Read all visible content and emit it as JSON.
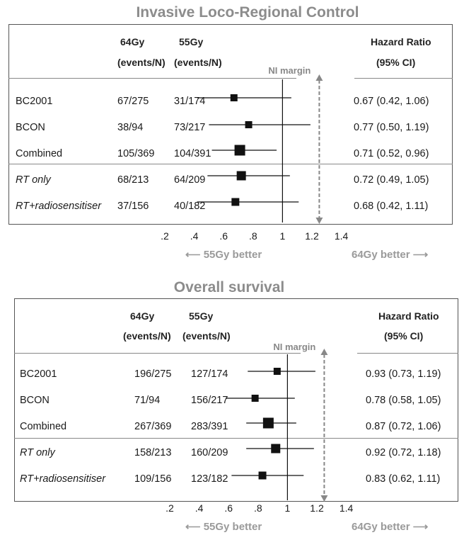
{
  "chart_data": [
    {
      "type": "forest",
      "title": "Invasive Loco-Regional Control",
      "headers": {
        "col64_line1": "64Gy",
        "col64_line2": "(events/N)",
        "col55_line1": "55Gy",
        "col55_line2": "(events/N)",
        "hr_line1": "Hazard Ratio",
        "hr_line2": "(95% CI)"
      },
      "ni_margin_label": "NI margin",
      "ni_margin_value": 1.25,
      "xticks": [
        0.2,
        0.4,
        0.6,
        0.8,
        1,
        1.2,
        1.4
      ],
      "xtick_labels": [
        ".2",
        ".4",
        ".6",
        ".8",
        "1",
        "1.2",
        "1.4"
      ],
      "xlim": [
        0.1,
        1.5
      ],
      "left_better": "55Gy better",
      "right_better": "64Gy better",
      "rows": [
        {
          "label": "BC2001",
          "italic": false,
          "e64": "67/275",
          "e55": "31/174",
          "hr": 0.67,
          "lo": 0.42,
          "hi": 1.06,
          "ci_text": "0.67 (0.42, 1.06)"
        },
        {
          "label": "BCON",
          "italic": false,
          "e64": "38/94",
          "e55": "73/217",
          "hr": 0.77,
          "lo": 0.5,
          "hi": 1.19,
          "ci_text": "0.77 (0.50, 1.19)"
        },
        {
          "label": "Combined",
          "italic": false,
          "e64": "105/369",
          "e55": "104/391",
          "hr": 0.71,
          "lo": 0.52,
          "hi": 0.96,
          "ci_text": "0.71 (0.52, 0.96)"
        },
        {
          "label": "RT only",
          "italic": true,
          "e64": "68/213",
          "e55": "64/209",
          "hr": 0.72,
          "lo": 0.49,
          "hi": 1.05,
          "ci_text": "0.72 (0.49, 1.05)"
        },
        {
          "label": "RT+radiosensitiser",
          "italic": true,
          "e64": "37/156",
          "e55": "40/182",
          "hr": 0.68,
          "lo": 0.42,
          "hi": 1.11,
          "ci_text": "0.68 (0.42, 1.11)"
        }
      ]
    },
    {
      "type": "forest",
      "title": "Overall survival",
      "headers": {
        "col64_line1": "64Gy",
        "col64_line2": "(events/N)",
        "col55_line1": "55Gy",
        "col55_line2": "(events/N)",
        "hr_line1": "Hazard Ratio",
        "hr_line2": "(95% CI)"
      },
      "ni_margin_label": "NI margin",
      "ni_margin_value": 1.25,
      "xticks": [
        0.2,
        0.4,
        0.6,
        0.8,
        1,
        1.2,
        1.4
      ],
      "xtick_labels": [
        ".2",
        ".4",
        ".6",
        ".8",
        "1",
        "1.2",
        "1.4"
      ],
      "xlim": [
        0.1,
        1.5
      ],
      "left_better": "55Gy better",
      "right_better": "64Gy better",
      "rows": [
        {
          "label": "BC2001",
          "italic": false,
          "e64": "196/275",
          "e55": "127/174",
          "hr": 0.93,
          "lo": 0.73,
          "hi": 1.19,
          "ci_text": "0.93 (0.73, 1.19)"
        },
        {
          "label": "BCON",
          "italic": false,
          "e64": "71/94",
          "e55": "156/217",
          "hr": 0.78,
          "lo": 0.58,
          "hi": 1.05,
          "ci_text": "0.78 (0.58, 1.05)"
        },
        {
          "label": "Combined",
          "italic": false,
          "e64": "267/369",
          "e55": "283/391",
          "hr": 0.87,
          "lo": 0.72,
          "hi": 1.06,
          "ci_text": "0.87 (0.72, 1.06)"
        },
        {
          "label": "RT only",
          "italic": true,
          "e64": "158/213",
          "e55": "160/209",
          "hr": 0.92,
          "lo": 0.72,
          "hi": 1.18,
          "ci_text": "0.92 (0.72, 1.18)"
        },
        {
          "label": "RT+radiosensitiser",
          "italic": true,
          "e64": "109/156",
          "e55": "123/182",
          "hr": 0.83,
          "lo": 0.62,
          "hi": 1.11,
          "ci_text": "0.83 (0.62, 1.11)"
        }
      ]
    }
  ]
}
